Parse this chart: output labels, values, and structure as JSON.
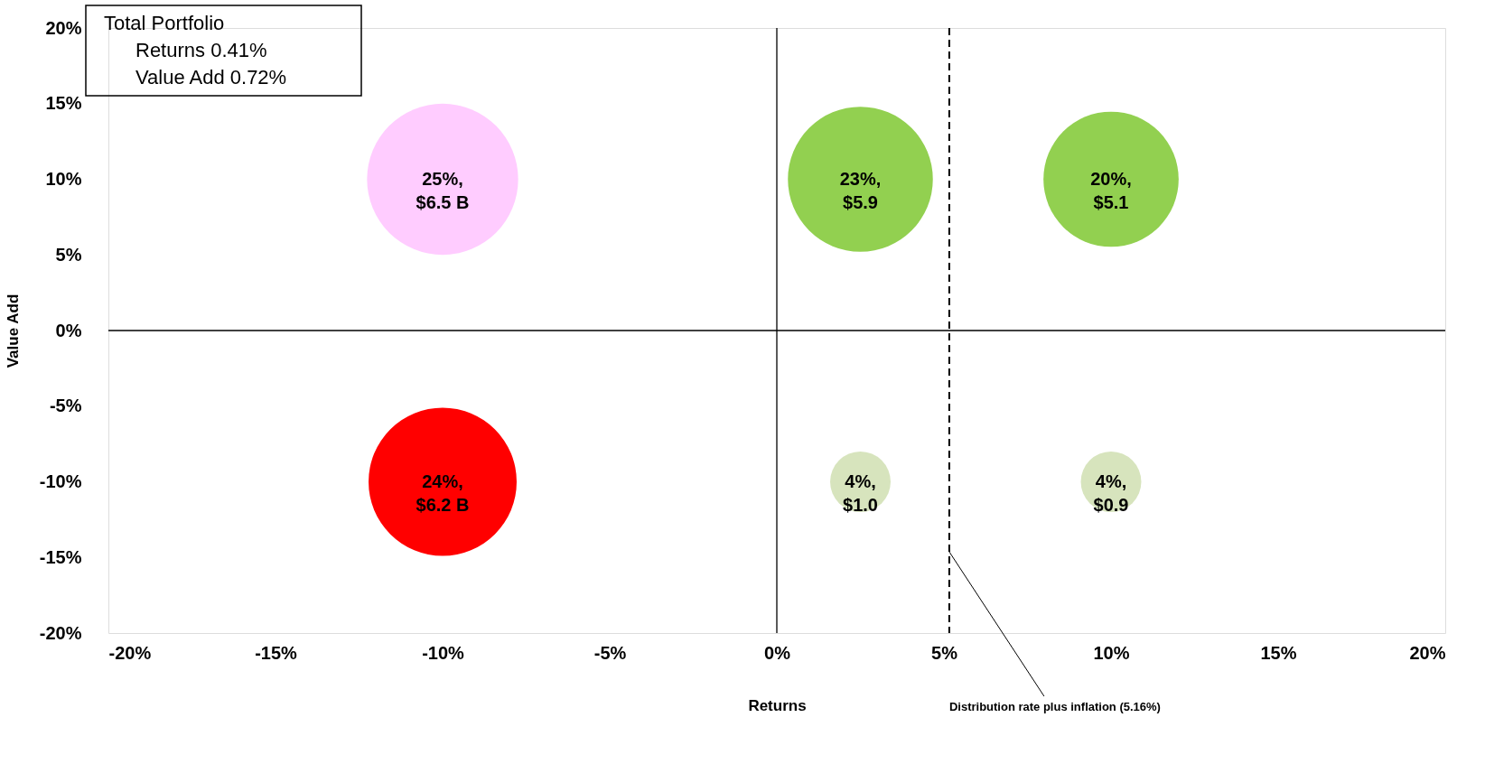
{
  "chart_data": {
    "type": "bubble",
    "xlabel": "Returns",
    "ylabel": "Value Add",
    "x": [
      -10,
      2.5,
      10,
      -10,
      2.5,
      10
    ],
    "values": [
      10,
      10,
      10,
      -10,
      -10,
      -10
    ],
    "sizes": [
      1,
      0.92,
      0.8,
      0.96,
      0.16,
      0.16
    ],
    "colors": [
      "#ffccff",
      "#92d050",
      "#92d050",
      "#ff0000",
      "#d7e4bd",
      "#d7e4bd"
    ],
    "value_labels": [
      "25%,\n$6.5 B",
      "23%,\n$5.9",
      "20%,\n$5.1",
      "24%,\n$6.2 B",
      "4%,\n$1.0",
      "4%,\n$0.9"
    ],
    "xlim": [
      -20,
      20
    ],
    "ylim": [
      -20,
      20
    ],
    "xticks": [
      {
        "value": -20,
        "label": "-20%"
      },
      {
        "value": -15,
        "label": "-15%"
      },
      {
        "value": -10,
        "label": "-10%"
      },
      {
        "value": -5,
        "label": "-5%"
      },
      {
        "value": 0,
        "label": "0%"
      },
      {
        "value": 5,
        "label": "5%"
      },
      {
        "value": 10,
        "label": "10%"
      },
      {
        "value": 15,
        "label": "15%"
      },
      {
        "value": 20,
        "label": "20%"
      }
    ],
    "yticks": [
      {
        "value": -20,
        "label": "-20%"
      },
      {
        "value": -15,
        "label": "-15%"
      },
      {
        "value": -10,
        "label": "-10%"
      },
      {
        "value": -5,
        "label": "-5%"
      },
      {
        "value": 0,
        "label": "0%"
      },
      {
        "value": 5,
        "label": "5%"
      },
      {
        "value": 10,
        "label": "10%"
      },
      {
        "value": 15,
        "label": "15%"
      },
      {
        "value": 20,
        "label": "20%"
      }
    ],
    "ref_lines": [
      {
        "axis": "x",
        "value": 0,
        "color": "#000000",
        "line_style": "solid"
      },
      {
        "axis": "y",
        "value": 0,
        "color": "#000000",
        "line_style": "solid"
      },
      {
        "axis": "x",
        "value": 5.16,
        "label": "Distribution rate plus inflation (5.16%)",
        "color": "#000000",
        "line_style": "dashed"
      }
    ],
    "annotations": [
      "Total Portfolio",
      "Returns    0.41%",
      "Value Add  0.72%"
    ],
    "grid": false
  }
}
